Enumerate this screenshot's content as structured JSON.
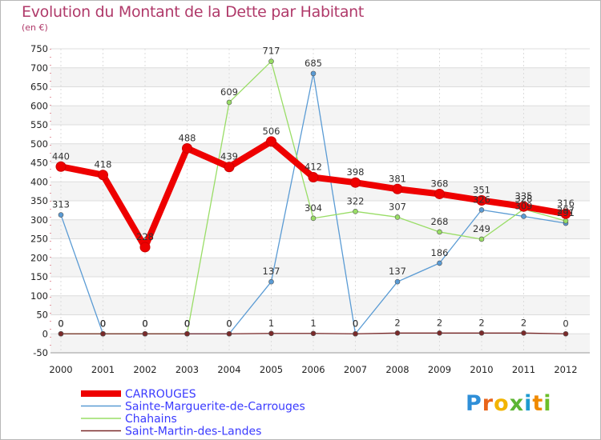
{
  "chart_data": {
    "type": "line",
    "title": "Evolution du Montant de la Dette par Habitant",
    "subtitle": "(en €)",
    "categories": [
      "2000",
      "2001",
      "2002",
      "2003",
      "2004",
      "2005",
      "2006",
      "2007",
      "2008",
      "2009",
      "2010",
      "2011",
      "2012"
    ],
    "ylim": [
      -50,
      750
    ],
    "yticks": [
      -50,
      0,
      50,
      100,
      150,
      200,
      250,
      300,
      350,
      400,
      450,
      500,
      550,
      600,
      650,
      700,
      750
    ],
    "grid": true,
    "legend_position": "bottom-left",
    "series": [
      {
        "name": "CARROUGES",
        "color": "#ee0000",
        "values": [
          440,
          418,
          228,
          488,
          439,
          506,
          412,
          398,
          381,
          368,
          351,
          335,
          316
        ],
        "labels": [
          "440",
          "418",
          "228",
          "488",
          "439",
          "506",
          "412",
          "398",
          "381",
          "368",
          "351",
          "335",
          "316"
        ]
      },
      {
        "name": "Sainte-Marguerite-de-Carrouges",
        "color": "#5a9bd4",
        "values": [
          313,
          0,
          0,
          0,
          0,
          137,
          685,
          0,
          137,
          186,
          326,
          309,
          291
        ],
        "labels": [
          "313",
          "0",
          "0",
          "0",
          "0",
          "137",
          "685",
          "0",
          "137",
          "186",
          "326",
          "309",
          "291"
        ]
      },
      {
        "name": "Chahains",
        "color": "#99dd66",
        "values": [
          0,
          0,
          0,
          0,
          609,
          717,
          304,
          322,
          307,
          268,
          249,
          328,
          297
        ],
        "labels": [
          "0",
          "0",
          "0",
          "0",
          "609",
          "717",
          "304",
          "322",
          "307",
          "268",
          "249",
          "328",
          "297"
        ]
      },
      {
        "name": "Saint-Martin-des-Landes",
        "color": "#7a2a2a",
        "values": [
          0,
          0,
          0,
          0,
          0,
          1,
          1,
          0,
          2,
          2,
          2,
          2,
          0
        ],
        "labels": [
          "0",
          "0",
          "0",
          "0",
          "0",
          "1",
          "1",
          "0",
          "2",
          "2",
          "2",
          "2",
          "0"
        ]
      }
    ]
  },
  "logo": {
    "letters": [
      "P",
      "r",
      "o",
      "x",
      "i",
      "t",
      "i"
    ],
    "colors": [
      "#2f8fd8",
      "#e8641a",
      "#f2b400",
      "#5cb532",
      "#1e9bd0",
      "#f08a00",
      "#6cbf2a"
    ]
  }
}
